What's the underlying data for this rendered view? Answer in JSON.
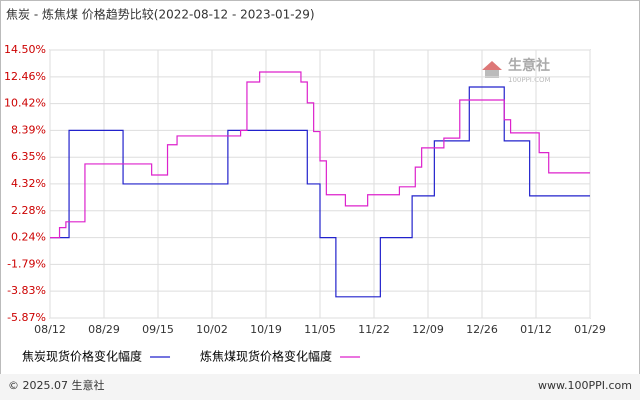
{
  "chart_data": {
    "type": "line",
    "step": true,
    "title": "焦炭 - 炼焦煤 价格趋势比较(2022-08-12 - 2023-01-29)",
    "watermark": "生意社",
    "watermark_sub": "100PPI.COM",
    "footer_left": "© 2025.07 生意社",
    "footer_right": "www.100PPI.com",
    "xlim": [
      "2022-08-12",
      "2023-01-29"
    ],
    "xticks": [
      {
        "value": "2022-08-12",
        "label": "08/12"
      },
      {
        "value": "2022-08-29",
        "label": "08/29"
      },
      {
        "value": "2022-09-15",
        "label": "09/15"
      },
      {
        "value": "2022-10-02",
        "label": "10/02"
      },
      {
        "value": "2022-10-19",
        "label": "10/19"
      },
      {
        "value": "2022-11-05",
        "label": "11/05"
      },
      {
        "value": "2022-11-22",
        "label": "11/22"
      },
      {
        "value": "2022-12-09",
        "label": "12/09"
      },
      {
        "value": "2022-12-26",
        "label": "12/26"
      },
      {
        "value": "2023-01-12",
        "label": "01/12"
      },
      {
        "value": "2023-01-29",
        "label": "01/29"
      }
    ],
    "ylim": [
      -5.87,
      14.5
    ],
    "yticks": [
      {
        "value": 14.5,
        "label": "14.50%"
      },
      {
        "value": 12.46,
        "label": "12.46%"
      },
      {
        "value": 10.42,
        "label": "10.42%"
      },
      {
        "value": 8.39,
        "label": "8.39%"
      },
      {
        "value": 6.35,
        "label": "6.35%"
      },
      {
        "value": 4.32,
        "label": "4.32%"
      },
      {
        "value": 2.28,
        "label": "2.28%"
      },
      {
        "value": 0.24,
        "label": "0.24%"
      },
      {
        "value": -1.79,
        "label": "-1.79%"
      },
      {
        "value": -3.83,
        "label": "-3.83%"
      },
      {
        "value": -5.87,
        "label": "-5.87%"
      }
    ],
    "grid": true,
    "series": [
      {
        "name": "焦炭现货价格变化幅度",
        "color": "#2222cc",
        "x": [
          "2022-08-12",
          "2022-08-18",
          "2022-09-04",
          "2022-10-07",
          "2022-11-01",
          "2022-11-05",
          "2022-11-10",
          "2022-11-24",
          "2022-12-04",
          "2022-12-11",
          "2022-12-22",
          "2023-01-02",
          "2023-01-10",
          "2023-01-29"
        ],
        "values": [
          0.24,
          8.39,
          4.32,
          8.39,
          4.32,
          0.24,
          -4.26,
          0.24,
          3.41,
          7.59,
          11.69,
          7.59,
          3.41,
          3.41
        ]
      },
      {
        "name": "炼焦煤现货价格变化幅度",
        "color": "#dd22cc",
        "x": [
          "2022-08-12",
          "2022-08-15",
          "2022-08-17",
          "2022-08-23",
          "2022-09-13",
          "2022-09-18",
          "2022-09-21",
          "2022-10-11",
          "2022-10-13",
          "2022-10-17",
          "2022-10-30",
          "2022-11-01",
          "2022-11-03",
          "2022-11-05",
          "2022-11-07",
          "2022-11-13",
          "2022-11-20",
          "2022-11-30",
          "2022-12-05",
          "2022-12-07",
          "2022-12-14",
          "2022-12-19",
          "2023-01-02",
          "2023-01-04",
          "2023-01-13",
          "2023-01-16",
          "2023-01-29"
        ],
        "values": [
          0.24,
          1.0,
          1.44,
          5.84,
          5.0,
          7.3,
          7.97,
          8.39,
          12.07,
          12.83,
          12.07,
          10.48,
          8.3,
          6.07,
          3.5,
          2.65,
          3.5,
          4.1,
          5.6,
          7.06,
          7.8,
          10.7,
          9.2,
          8.2,
          6.7,
          5.16,
          5.16
        ]
      }
    ]
  }
}
